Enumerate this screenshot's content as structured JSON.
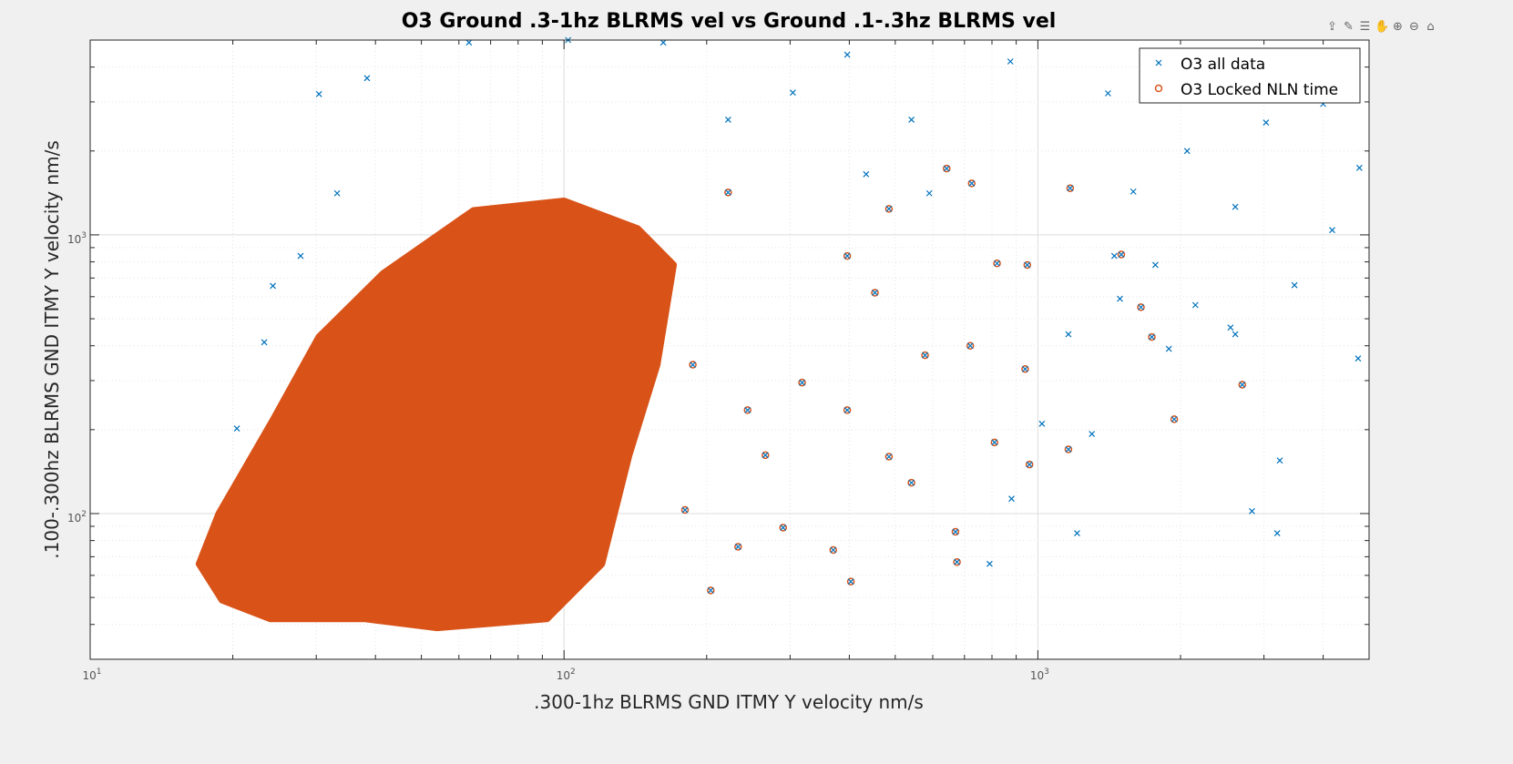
{
  "chart_data": {
    "type": "scatter",
    "title": "O3 Ground .3-1hz BLRMS vel vs Ground .1-.3hz BLRMS vel",
    "xlabel": ".300-1hz BLRMS GND ITMY Y velocity nm/s",
    "ylabel": ".100-.300hz BLRMS GND ITMY Y velocity nm/s",
    "xscale": "log",
    "yscale": "log",
    "xlim": [
      10,
      5000
    ],
    "ylim": [
      30,
      5000
    ],
    "xticks": [
      {
        "base": "10",
        "exp": "1",
        "value": 10
      },
      {
        "base": "10",
        "exp": "2",
        "value": 100
      },
      {
        "base": "10",
        "exp": "3",
        "value": 1000
      }
    ],
    "yticks": [
      {
        "base": "10",
        "exp": "2",
        "value": 100
      },
      {
        "base": "10",
        "exp": "3",
        "value": 1000
      }
    ],
    "grid": "major and minor",
    "legend_position": "top-right",
    "series": [
      {
        "name": "O3 all data",
        "marker": "x",
        "color": "#0072BD",
        "points": [
          [
            875,
            4190
          ],
          [
            1406,
            3220
          ],
          [
            2065,
            2000
          ],
          [
            3030,
            2530
          ],
          [
            4000,
            2950
          ],
          [
            4180,
            1040
          ],
          [
            4770,
            1740
          ],
          [
            2610,
            1260
          ],
          [
            3480,
            660
          ],
          [
            4740,
            360
          ],
          [
            3240,
            155
          ],
          [
            2830,
            102
          ],
          [
            3200,
            85
          ],
          [
            1210,
            85
          ],
          [
            1020,
            210
          ],
          [
            1300,
            193
          ],
          [
            791,
            66
          ],
          [
            880,
            113
          ],
          [
            2550,
            465
          ],
          [
            2150,
            560
          ],
          [
            1890,
            390
          ],
          [
            1490,
            590
          ],
          [
            1160,
            440
          ],
          [
            2610,
            440
          ],
          [
            1770,
            780
          ],
          [
            1450,
            840
          ],
          [
            1590,
            1430
          ],
          [
            30.4,
            3200
          ],
          [
            38.4,
            3650
          ],
          [
            63,
            4900
          ],
          [
            102,
            5000
          ],
          [
            162,
            4900
          ],
          [
            396,
            4430
          ],
          [
            304,
            3240
          ],
          [
            222,
            2590
          ],
          [
            541,
            2590
          ],
          [
            434,
            1650
          ],
          [
            590,
            1410
          ],
          [
            33.2,
            1410
          ],
          [
            24.3,
            656
          ],
          [
            27.8,
            840
          ],
          [
            23.3,
            412
          ],
          [
            20.4,
            202
          ]
        ]
      },
      {
        "name": "O3 Locked NLN time",
        "marker": "o",
        "color": "#D95319",
        "dense_region": [
          [
            18.7,
            99.7
          ],
          [
            24.4,
            218
          ],
          [
            30.4,
            429
          ],
          [
            41.5,
            724
          ],
          [
            64.4,
            1220
          ],
          [
            100,
            1320
          ],
          [
            143,
            1050
          ],
          [
            170,
            780
          ],
          [
            157,
            342
          ],
          [
            137,
            162
          ],
          [
            120,
            66
          ],
          [
            92,
            42
          ],
          [
            54,
            39
          ],
          [
            38,
            42
          ],
          [
            24,
            42
          ],
          [
            19,
            49
          ],
          [
            17,
            66
          ]
        ],
        "points": [
          [
            1170,
            1470
          ],
          [
            725,
            1530
          ],
          [
            642,
            1730
          ],
          [
            1500,
            850
          ],
          [
            1650,
            550
          ],
          [
            2700,
            290
          ],
          [
            1940,
            218
          ],
          [
            1740,
            430
          ],
          [
            1160,
            170
          ],
          [
            960,
            150
          ],
          [
            675,
            67
          ],
          [
            670,
            86
          ],
          [
            810,
            180
          ],
          [
            940,
            330
          ],
          [
            950,
            780
          ],
          [
            820,
            790
          ],
          [
            720,
            400
          ],
          [
            485,
            160
          ],
          [
            403,
            57
          ],
          [
            370,
            74
          ],
          [
            318,
            295
          ],
          [
            396,
            840
          ],
          [
            485,
            1240
          ],
          [
            222,
            1420
          ],
          [
            290,
            89
          ],
          [
            266,
            162
          ],
          [
            204,
            53
          ],
          [
            233,
            76
          ],
          [
            187,
            342
          ],
          [
            244,
            235
          ],
          [
            396,
            235
          ],
          [
            541,
            129
          ],
          [
            578,
            370
          ],
          [
            453,
            620
          ],
          [
            180,
            103
          ]
        ]
      }
    ]
  },
  "toolbar": {
    "icons": [
      "export-icon",
      "brush-icon",
      "datatip-icon",
      "pan-icon",
      "zoom-in-icon",
      "zoom-out-icon",
      "home-icon"
    ]
  }
}
